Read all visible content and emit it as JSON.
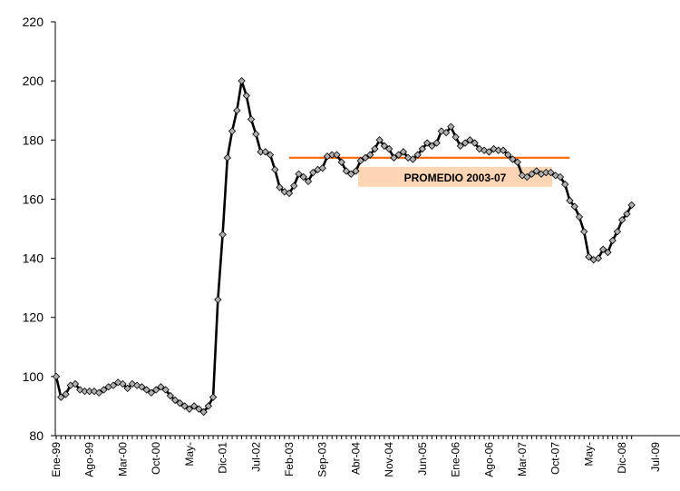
{
  "chart_data": {
    "type": "line",
    "title": "",
    "xlabel": "",
    "ylabel": "",
    "ylim": [
      80,
      220
    ],
    "yticks": [
      80,
      100,
      120,
      140,
      160,
      180,
      200,
      220
    ],
    "grid": false,
    "legend": "none",
    "x_tick_labels": [
      "Ene-99",
      "Ago-99",
      "Mar-00",
      "Oct-00",
      "May-",
      "Dic-01",
      "Jul-02",
      "Feb-03",
      "Sep-03",
      "Abr-04",
      "Nov-04",
      "Jun-05",
      "Ene-06",
      "Ago-06",
      "Mar-07",
      "Oct-07",
      "May-",
      "Dic-08",
      "Jul-09"
    ],
    "x_tick_month_index": [
      0,
      7,
      14,
      21,
      28,
      35,
      42,
      49,
      56,
      63,
      70,
      77,
      84,
      91,
      98,
      105,
      112,
      119,
      126
    ],
    "series": [
      {
        "values": [
          100,
          93,
          94,
          97,
          97.5,
          95.5,
          95,
          95,
          95,
          94.5,
          95.5,
          96.5,
          97,
          98,
          97.5,
          96,
          97.5,
          97,
          96.5,
          95.5,
          94.5,
          95.5,
          96.5,
          95.5,
          93.5,
          92,
          91,
          90,
          89,
          90,
          89,
          88,
          90,
          93,
          126,
          148,
          174,
          183,
          190,
          200,
          195,
          187,
          182,
          176,
          176,
          175,
          170,
          164,
          162.5,
          162,
          164.5,
          168.5,
          167.5,
          166,
          169,
          170,
          170.5,
          174.5,
          175,
          175,
          172.5,
          169.5,
          168.5,
          169.5,
          173,
          174,
          175,
          177,
          180,
          178,
          177,
          174,
          175,
          176,
          174,
          173.5,
          175,
          177,
          179,
          178,
          179,
          183,
          182.5,
          184.5,
          181,
          178,
          179,
          180,
          179,
          177,
          176.5,
          176,
          177,
          176.5,
          176.5,
          175,
          173.5,
          172.5,
          168,
          167.5,
          168.5,
          169.5,
          168.5,
          169,
          169,
          168,
          167.5,
          165,
          159.5,
          157.5,
          154,
          149,
          140.5,
          139.5,
          140,
          143,
          142,
          146,
          149,
          153,
          155,
          158
        ]
      }
    ],
    "annotations": [
      {
        "text": "PROMEDIO 2003-07",
        "value": 174,
        "from_month_index": 49,
        "to_month_index": 108
      }
    ],
    "colors": {
      "line": "#000000",
      "marker_fill": "#b0b0b0",
      "average_line": "#ff6600",
      "label_box": "#fcd5b5",
      "axis": "#000000"
    }
  }
}
